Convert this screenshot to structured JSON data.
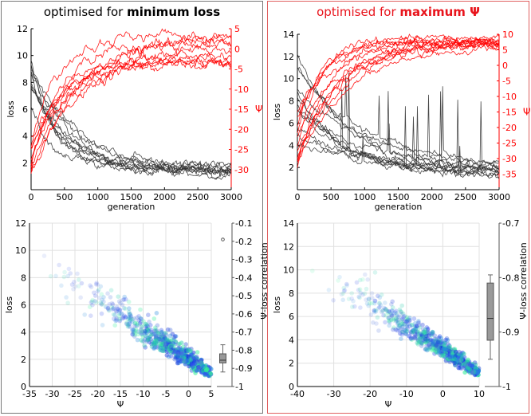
{
  "panels": [
    {
      "title_prefix": "optimised for ",
      "title_bold": "minimum loss",
      "title_color": "#000000",
      "border_color": "#777777"
    },
    {
      "title_prefix": "optimised for ",
      "title_bold": "maximum Ψ",
      "title_color": "#e8141c",
      "border_color": "#e06060"
    }
  ],
  "chart_data": [
    {
      "type": "line",
      "title": "optimised for minimum loss",
      "xlabel": "generation",
      "ylabel": "loss",
      "y2label": "Ψ",
      "xlim": [
        0,
        3000
      ],
      "ylim": [
        0,
        12
      ],
      "y2lim": [
        -35,
        5
      ],
      "xticks": [
        0,
        500,
        1000,
        1500,
        2000,
        2500,
        3000
      ],
      "yticks": [
        2,
        4,
        6,
        8,
        10,
        12
      ],
      "y2ticks": [
        -30,
        -25,
        -20,
        -15,
        -10,
        -5,
        0,
        5
      ],
      "series_groups": [
        {
          "name": "loss",
          "axis": "left",
          "color": "#333333",
          "count": 10,
          "start_range": [
            4,
            10
          ],
          "end_range": [
            0.9,
            1.9
          ],
          "decay_gen": 600
        },
        {
          "name": "Ψ",
          "axis": "right",
          "color": "#ff0000",
          "count": 10,
          "start_range": [
            -34,
            -18
          ],
          "end_range": [
            -5,
            4
          ],
          "rise_gen": 700
        }
      ]
    },
    {
      "type": "line",
      "title": "optimised for maximum Ψ",
      "xlabel": "generation",
      "ylabel": "loss",
      "y2label": "Ψ",
      "xlim": [
        0,
        3000
      ],
      "ylim": [
        0,
        14
      ],
      "y2lim": [
        -40,
        10
      ],
      "xticks": [
        0,
        500,
        1000,
        1500,
        2000,
        2500,
        3000
      ],
      "yticks": [
        2,
        4,
        6,
        8,
        10,
        12,
        14
      ],
      "y2ticks": [
        -35,
        -30,
        -25,
        -20,
        -15,
        -10,
        -5,
        0,
        5,
        10
      ],
      "series_groups": [
        {
          "name": "loss",
          "axis": "left",
          "color": "#333333",
          "count": 12,
          "start_range": [
            4,
            13.5
          ],
          "end_range": [
            0.9,
            2.0
          ],
          "decay_gen": 900
        },
        {
          "name": "Ψ",
          "axis": "right",
          "color": "#ff0000",
          "count": 12,
          "start_range": [
            -35,
            -15
          ],
          "end_range": [
            6,
            9
          ],
          "rise_gen": 600
        }
      ]
    },
    {
      "type": "scatter",
      "xlabel": "Ψ",
      "ylabel": "loss",
      "y2label": "Ψ-loss correlation",
      "xlim": [
        -35,
        5
      ],
      "ylim": [
        0,
        12
      ],
      "y2lim": [
        -1.0,
        -0.1
      ],
      "xticks": [
        -35,
        -30,
        -25,
        -20,
        -15,
        -10,
        -5,
        0,
        5
      ],
      "yticks": [
        0,
        2,
        4,
        6,
        8,
        10,
        12
      ],
      "y2ticks": [
        -1.0,
        -0.9,
        -0.8,
        -0.7,
        -0.6,
        -0.5,
        -0.4,
        -0.3,
        -0.2,
        -0.1
      ],
      "grid": true,
      "trend": {
        "psi_start": -33,
        "loss_start": 9.0,
        "psi_end": 4.5,
        "loss_end": 0.8
      },
      "boxplot": {
        "min": -0.92,
        "q1": -0.87,
        "median": -0.855,
        "q3": -0.82,
        "max": -0.77,
        "outliers": [
          -0.19
        ]
      }
    },
    {
      "type": "scatter",
      "xlabel": "Ψ",
      "ylabel": "loss",
      "y2label": "Ψ-loss correlation",
      "xlim": [
        -40,
        10
      ],
      "ylim": [
        0,
        14
      ],
      "y2lim": [
        -1.0,
        -0.7
      ],
      "xticks": [
        -40,
        -30,
        -20,
        -10,
        0,
        10
      ],
      "yticks": [
        0,
        2,
        4,
        6,
        8,
        10,
        12,
        14
      ],
      "y2ticks": [
        -1.0,
        -0.9,
        -0.8,
        -0.7
      ],
      "grid": true,
      "trend": {
        "psi_start": -35,
        "loss_start": 10.0,
        "psi_end": 9.5,
        "loss_end": 1.0
      },
      "boxplot": {
        "min": -0.95,
        "q1": -0.915,
        "median": -0.875,
        "q3": -0.81,
        "max": -0.795,
        "outliers": []
      }
    }
  ]
}
